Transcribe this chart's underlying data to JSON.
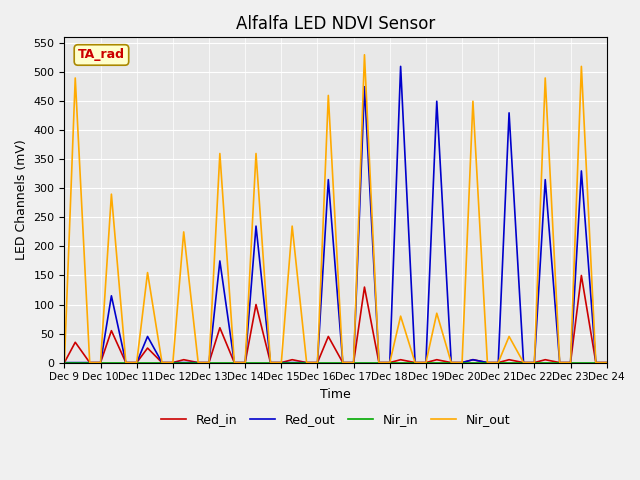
{
  "title": "Alfalfa LED NDVI Sensor",
  "xlabel": "Time",
  "ylabel": "LED Channels (mV)",
  "annotation": "TA_rad",
  "ylim": [
    0,
    560
  ],
  "yticks": [
    0,
    50,
    100,
    150,
    200,
    250,
    300,
    350,
    400,
    450,
    500,
    550
  ],
  "x_labels": [
    "Dec 9",
    "Dec 10",
    "Dec 11",
    "Dec 12",
    "Dec 13",
    "Dec 14",
    "Dec 15",
    "Dec 16",
    "Dec 17",
    "Dec 18",
    "Dec 19",
    "Dec 20",
    "Dec 21",
    "Dec 22",
    "Dec 23",
    "Dec 24"
  ],
  "x_positions": [
    9,
    9.3,
    9.7,
    10,
    10.3,
    10.7,
    11,
    11.3,
    11.7,
    12,
    12.3,
    12.7,
    13,
    13.3,
    13.7,
    14,
    14.3,
    14.7,
    15,
    15.3,
    15.7,
    16,
    16.3,
    16.7,
    17,
    17.3,
    17.7,
    18,
    18.3,
    18.7,
    19,
    19.3,
    19.7,
    20,
    20.3,
    20.7,
    21,
    21.3,
    21.7,
    22,
    22.3,
    22.7,
    23,
    23.3,
    23.7,
    24
  ],
  "Red_in": [
    0,
    35,
    0,
    0,
    55,
    0,
    0,
    25,
    0,
    0,
    5,
    0,
    0,
    60,
    0,
    0,
    100,
    0,
    0,
    5,
    0,
    0,
    45,
    0,
    0,
    130,
    0,
    0,
    5,
    0,
    0,
    5,
    0,
    0,
    5,
    0,
    0,
    5,
    0,
    0,
    5,
    0,
    0,
    150,
    0,
    0
  ],
  "Red_out": [
    0,
    0,
    0,
    0,
    115,
    0,
    0,
    45,
    0,
    0,
    0,
    0,
    0,
    175,
    0,
    0,
    235,
    0,
    0,
    0,
    0,
    0,
    315,
    0,
    0,
    475,
    0,
    0,
    510,
    0,
    0,
    450,
    0,
    0,
    5,
    0,
    0,
    430,
    0,
    0,
    315,
    0,
    0,
    330,
    0,
    0
  ],
  "Nir_in": [
    0,
    0,
    0,
    0,
    0,
    0,
    0,
    0,
    0,
    0,
    0,
    0,
    0,
    0,
    0,
    0,
    0,
    0,
    0,
    0,
    0,
    0,
    0,
    0,
    0,
    0,
    0,
    0,
    0,
    0,
    0,
    0,
    0,
    0,
    0,
    0,
    0,
    0,
    0,
    0,
    0,
    0,
    0,
    0,
    0,
    0
  ],
  "Nir_out": [
    0,
    490,
    0,
    0,
    290,
    0,
    0,
    155,
    0,
    0,
    225,
    0,
    0,
    360,
    0,
    0,
    360,
    0,
    0,
    235,
    0,
    0,
    460,
    0,
    0,
    530,
    0,
    0,
    80,
    0,
    0,
    85,
    0,
    0,
    450,
    0,
    0,
    45,
    0,
    0,
    490,
    0,
    0,
    510,
    0,
    0
  ],
  "colors": {
    "Red_in": "#cc0000",
    "Red_out": "#0000cc",
    "Nir_in": "#00aa00",
    "Nir_out": "#ffaa00"
  },
  "bg_color": "#e8e8e8",
  "fig_bg": "#f0f0f0"
}
